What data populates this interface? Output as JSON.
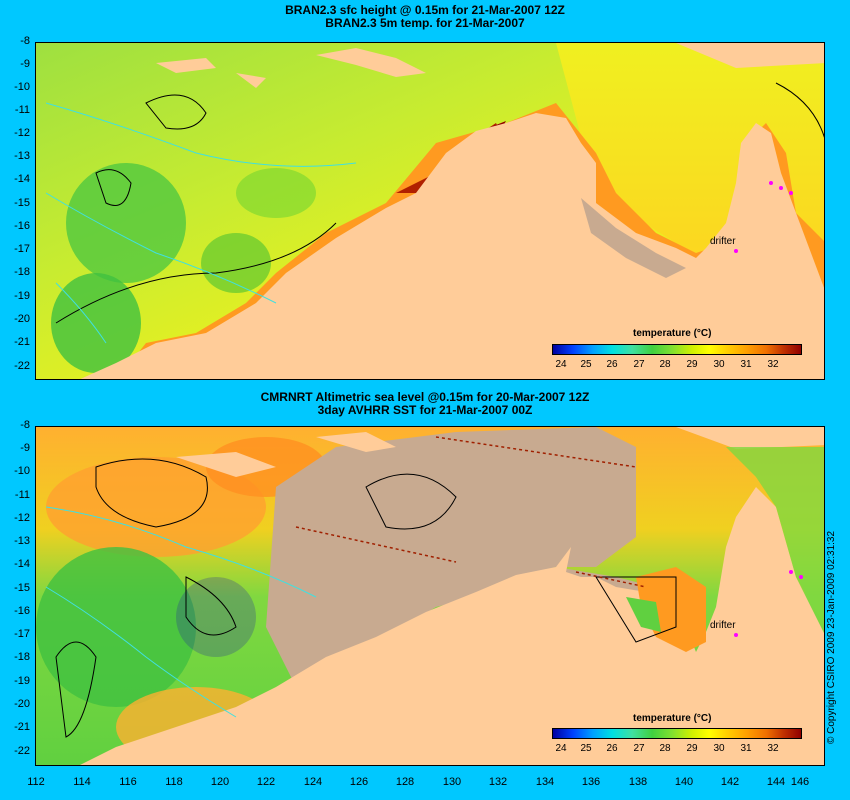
{
  "panels": [
    {
      "title_line1": "BRAN2.3 sfc height @ 0.15m for 21-Mar-2007 12Z",
      "title_line2": "BRAN2.3 5m temp. for 21-Mar-2007",
      "drifter_label": "drifter"
    },
    {
      "title_line1": "CMRNRT Altimetric sea level  @0.15m  for 20-Mar-2007 12Z",
      "title_line2": "3day AVHRR SST for 21-Mar-2007 00Z",
      "drifter_label": "drifter"
    }
  ],
  "lat_labels": [
    "-8",
    "-9",
    "-10",
    "-11",
    "-12",
    "-13",
    "-14",
    "-15",
    "-16",
    "-17",
    "-18",
    "-19",
    "-20",
    "-21",
    "-22"
  ],
  "lon_labels": [
    "112",
    "114",
    "116",
    "118",
    "120",
    "122",
    "124",
    "126",
    "128",
    "130",
    "132",
    "134",
    "136",
    "138",
    "140",
    "142",
    "144",
    "146"
  ],
  "legend": {
    "title": "temperature (°C)",
    "ticks": [
      "24",
      "25",
      "26",
      "27",
      "28",
      "29",
      "30",
      "31",
      "32"
    ]
  },
  "copyright": "© Copyright CSIRO 2009   23-Jan-2009 02:31:32",
  "colors": {
    "background": "#00c8ff",
    "land": "#ffcc99",
    "nodata": "#c8aa90",
    "drifter": "#ff00ff"
  }
}
